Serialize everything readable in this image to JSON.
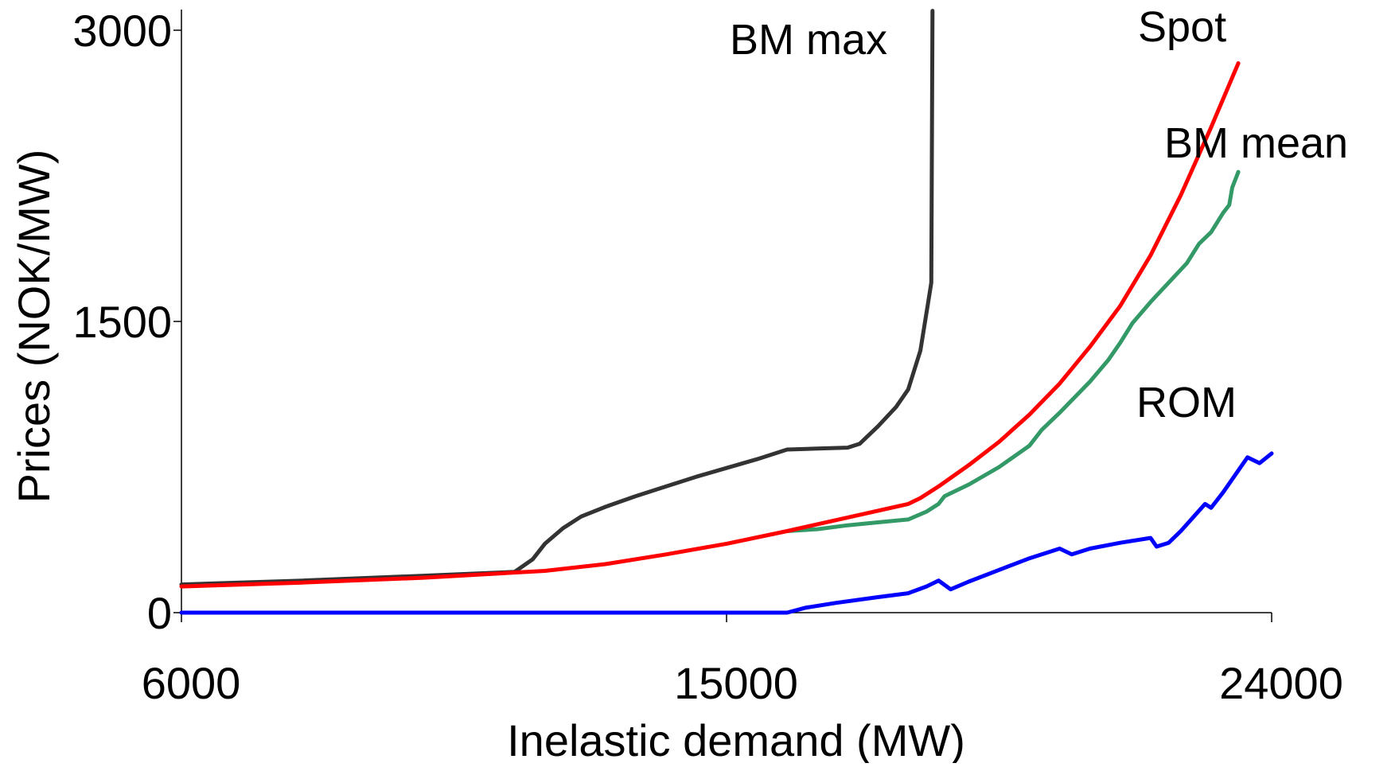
{
  "chart_data": {
    "type": "line",
    "title": "",
    "xlabel": "Inelastic demand (MW)",
    "ylabel": "Prices (NOK/MW)",
    "xlim": [
      6000,
      24000
    ],
    "ylim": [
      0,
      3100
    ],
    "x_ticks": [
      6000,
      15000,
      24000
    ],
    "x_tick_labels": [
      "6000",
      "15000",
      "24000"
    ],
    "y_ticks": [
      0,
      1500,
      3000
    ],
    "y_tick_labels": [
      "0",
      "1500",
      "3000"
    ],
    "grid": false,
    "legend": "none",
    "series": [
      {
        "name": "BM max",
        "color": "#333333",
        "points": [
          [
            6000,
            145
          ],
          [
            8000,
            165
          ],
          [
            10000,
            190
          ],
          [
            11500,
            210
          ],
          [
            11800,
            275
          ],
          [
            12000,
            355
          ],
          [
            12300,
            435
          ],
          [
            12600,
            495
          ],
          [
            13000,
            545
          ],
          [
            13500,
            600
          ],
          [
            14000,
            650
          ],
          [
            14500,
            700
          ],
          [
            15000,
            745
          ],
          [
            15500,
            790
          ],
          [
            16000,
            840
          ],
          [
            16500,
            845
          ],
          [
            17000,
            850
          ],
          [
            17200,
            870
          ],
          [
            17500,
            960
          ],
          [
            17800,
            1060
          ],
          [
            18000,
            1150
          ],
          [
            18200,
            1350
          ],
          [
            18350,
            1640
          ],
          [
            18380,
            1700
          ],
          [
            18400,
            3100
          ]
        ]
      },
      {
        "name": "Spot",
        "color": "#ff0000",
        "points": [
          [
            6000,
            135
          ],
          [
            8000,
            155
          ],
          [
            10000,
            180
          ],
          [
            12000,
            215
          ],
          [
            13000,
            250
          ],
          [
            14000,
            300
          ],
          [
            15000,
            355
          ],
          [
            16000,
            420
          ],
          [
            17000,
            490
          ],
          [
            17500,
            525
          ],
          [
            18000,
            560
          ],
          [
            18200,
            590
          ],
          [
            18500,
            650
          ],
          [
            19000,
            760
          ],
          [
            19500,
            880
          ],
          [
            20000,
            1020
          ],
          [
            20500,
            1180
          ],
          [
            21000,
            1370
          ],
          [
            21500,
            1580
          ],
          [
            22000,
            1840
          ],
          [
            22500,
            2150
          ],
          [
            23000,
            2500
          ],
          [
            23300,
            2720
          ],
          [
            23450,
            2830
          ]
        ]
      },
      {
        "name": "BM mean",
        "color": "#339966",
        "points": [
          [
            16000,
            420
          ],
          [
            16500,
            430
          ],
          [
            17000,
            450
          ],
          [
            17500,
            465
          ],
          [
            18000,
            480
          ],
          [
            18300,
            520
          ],
          [
            18500,
            560
          ],
          [
            18600,
            600
          ],
          [
            19000,
            660
          ],
          [
            19500,
            750
          ],
          [
            20000,
            860
          ],
          [
            20200,
            940
          ],
          [
            20500,
            1030
          ],
          [
            21000,
            1190
          ],
          [
            21300,
            1300
          ],
          [
            21500,
            1390
          ],
          [
            21700,
            1490
          ],
          [
            22000,
            1600
          ],
          [
            22300,
            1700
          ],
          [
            22600,
            1800
          ],
          [
            22800,
            1900
          ],
          [
            23000,
            1960
          ],
          [
            23200,
            2060
          ],
          [
            23300,
            2100
          ],
          [
            23350,
            2190
          ],
          [
            23450,
            2270
          ]
        ]
      },
      {
        "name": "ROM",
        "color": "#0000ff",
        "points": [
          [
            6000,
            0
          ],
          [
            10000,
            0
          ],
          [
            14000,
            0
          ],
          [
            16000,
            0
          ],
          [
            16300,
            25
          ],
          [
            16800,
            50
          ],
          [
            17500,
            80
          ],
          [
            18000,
            100
          ],
          [
            18300,
            135
          ],
          [
            18500,
            165
          ],
          [
            18700,
            120
          ],
          [
            19000,
            160
          ],
          [
            19500,
            220
          ],
          [
            20000,
            280
          ],
          [
            20500,
            330
          ],
          [
            20700,
            300
          ],
          [
            21000,
            330
          ],
          [
            21500,
            360
          ],
          [
            22000,
            385
          ],
          [
            22100,
            340
          ],
          [
            22300,
            360
          ],
          [
            22500,
            420
          ],
          [
            22700,
            490
          ],
          [
            22900,
            560
          ],
          [
            23000,
            540
          ],
          [
            23200,
            620
          ],
          [
            23400,
            710
          ],
          [
            23600,
            800
          ],
          [
            23800,
            770
          ],
          [
            24000,
            820
          ]
        ]
      }
    ],
    "annotations": [
      {
        "text": "BM max",
        "series": "BM max"
      },
      {
        "text": "Spot",
        "series": "Spot"
      },
      {
        "text": "BM mean",
        "series": "BM mean"
      },
      {
        "text": "ROM",
        "series": "ROM"
      }
    ]
  }
}
